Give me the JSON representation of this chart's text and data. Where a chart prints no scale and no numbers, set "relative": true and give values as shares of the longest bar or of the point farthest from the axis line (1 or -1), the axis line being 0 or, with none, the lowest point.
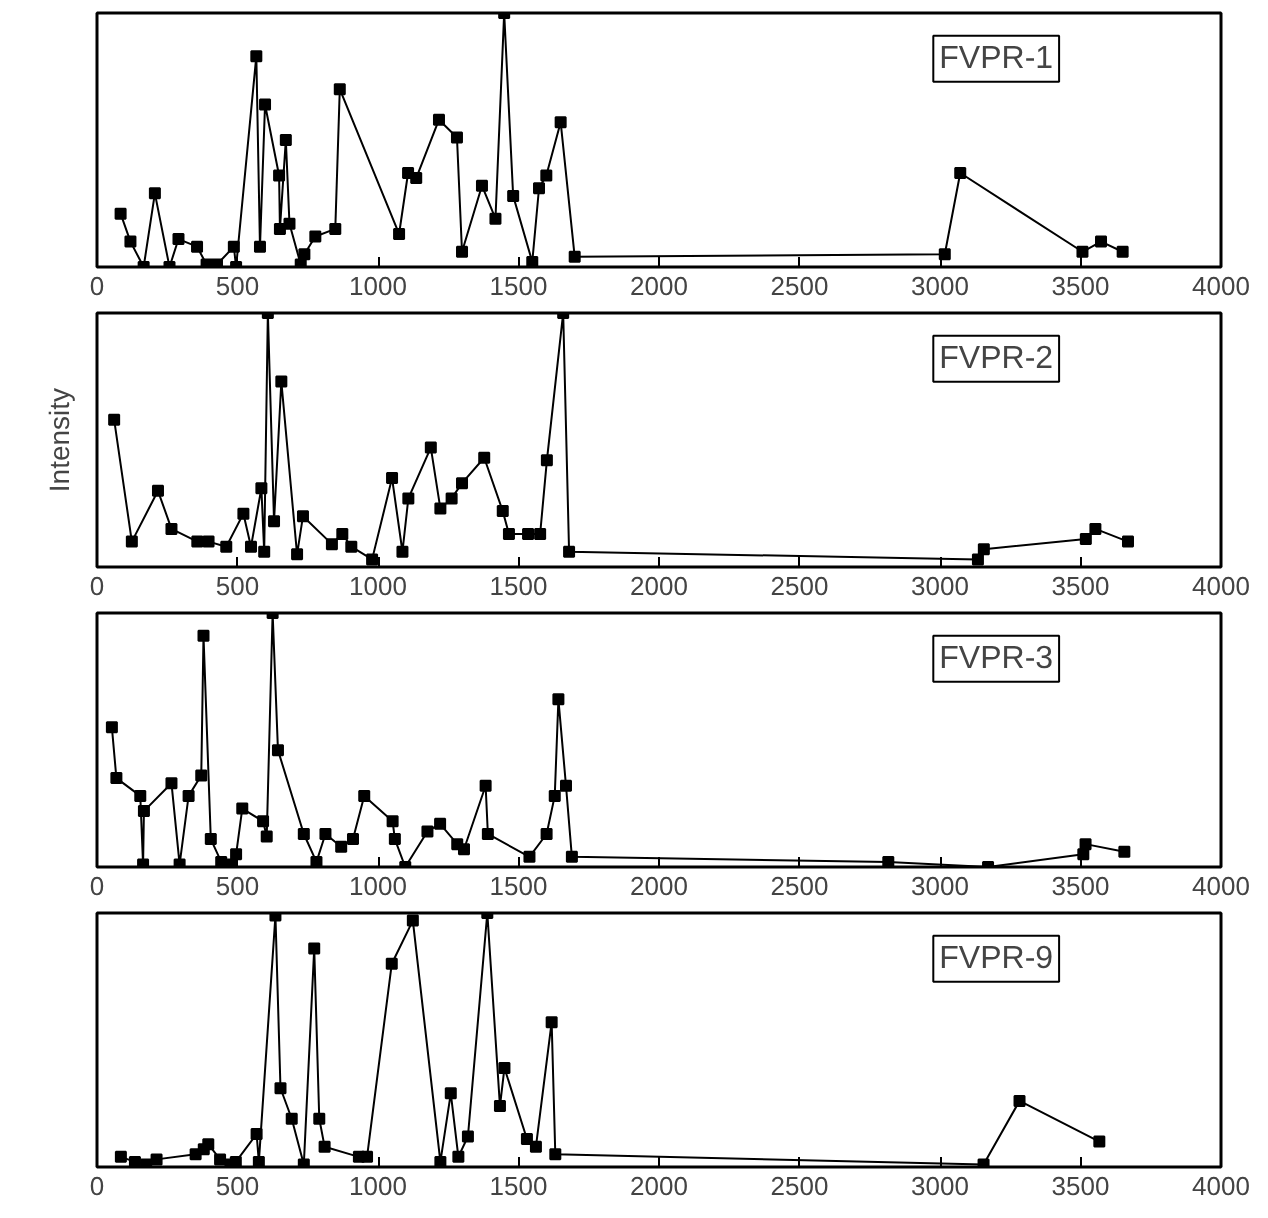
{
  "chart_data": [
    {
      "type": "line",
      "title": "FVPR-1",
      "relative": true,
      "marker": "square",
      "line_style": "solid",
      "grid": false,
      "tick_labels": "x",
      "xlim": [
        0,
        4000
      ],
      "xticks": [
        0,
        500,
        1000,
        1500,
        2000,
        2500,
        3000,
        3500,
        4000
      ],
      "x": [
        84,
        119,
        166,
        206,
        258,
        290,
        356,
        390,
        427,
        487,
        495,
        567,
        580,
        598,
        648,
        651,
        672,
        685,
        725,
        738,
        777,
        848,
        864,
        1075,
        1107,
        1136,
        1217,
        1281,
        1299,
        1370,
        1418,
        1449,
        1481,
        1549,
        1573,
        1599,
        1650,
        1700,
        3017,
        3072,
        3507,
        3573,
        3650
      ],
      "series": [
        {
          "color": "#000000",
          "values": [
            0.21,
            0.1,
            0,
            0.29,
            0,
            0.11,
            0.08,
            0.01,
            0.01,
            0.08,
            0,
            0.83,
            0.08,
            0.64,
            0.36,
            0.15,
            0.5,
            0.17,
            0.01,
            0.05,
            0.12,
            0.15,
            0.7,
            0.13,
            0.37,
            0.35,
            0.58,
            0.51,
            0.06,
            0.32,
            0.19,
            1.0,
            0.28,
            0.02,
            0.31,
            0.36,
            0.57,
            0.04,
            0.05,
            0.37,
            0.06,
            0.1,
            0.06
          ]
        }
      ]
    },
    {
      "type": "line",
      "title": "FVPR-2",
      "ylabel": "Intensity",
      "relative": true,
      "marker": "square",
      "line_style": "solid",
      "grid": false,
      "tick_labels": "x",
      "xlim": [
        0,
        4000
      ],
      "xticks": [
        0,
        500,
        1000,
        1500,
        2000,
        2500,
        3000,
        3500,
        4000
      ],
      "x": [
        61,
        124,
        217,
        265,
        357,
        397,
        460,
        521,
        548,
        585,
        595,
        608,
        630,
        656,
        712,
        733,
        836,
        873,
        905,
        979,
        1050,
        1087,
        1108,
        1188,
        1222,
        1262,
        1299,
        1378,
        1444,
        1466,
        1534,
        1577,
        1601,
        1659,
        1680,
        3135,
        3156,
        3519,
        3553,
        3669
      ],
      "series": [
        {
          "color": "#000000",
          "values": [
            0.58,
            0.1,
            0.3,
            0.15,
            0.1,
            0.1,
            0.08,
            0.21,
            0.08,
            0.31,
            0.06,
            1.0,
            0.18,
            0.73,
            0.05,
            0.2,
            0.09,
            0.13,
            0.08,
            0.03,
            0.35,
            0.06,
            0.27,
            0.47,
            0.23,
            0.27,
            0.33,
            0.43,
            0.22,
            0.13,
            0.13,
            0.13,
            0.42,
            1.0,
            0.06,
            0.03,
            0.07,
            0.11,
            0.15,
            0.1
          ]
        }
      ]
    },
    {
      "type": "line",
      "title": "FVPR-3",
      "relative": true,
      "marker": "square",
      "line_style": "solid",
      "grid": false,
      "tick_labels": "x",
      "xlim": [
        0,
        4000
      ],
      "xticks": [
        0,
        500,
        1000,
        1500,
        2000,
        2500,
        3000,
        3500,
        4000
      ],
      "x": [
        53,
        69,
        154,
        164,
        167,
        265,
        294,
        326,
        371,
        379,
        405,
        442,
        479,
        495,
        517,
        591,
        604,
        625,
        644,
        736,
        781,
        813,
        869,
        911,
        951,
        1052,
        1060,
        1097,
        1176,
        1221,
        1282,
        1306,
        1383,
        1391,
        1539,
        1600,
        1629,
        1642,
        1669,
        1690,
        2816,
        3171,
        3510,
        3518,
        3656
      ],
      "series": [
        {
          "color": "#000000",
          "values": [
            0.55,
            0.35,
            0.28,
            0.01,
            0.22,
            0.33,
            0.01,
            0.28,
            0.36,
            0.91,
            0.11,
            0.02,
            0.01,
            0.05,
            0.23,
            0.18,
            0.12,
            1.0,
            0.46,
            0.13,
            0.02,
            0.13,
            0.08,
            0.11,
            0.28,
            0.18,
            0.11,
            0,
            0.14,
            0.17,
            0.09,
            0.07,
            0.32,
            0.13,
            0.04,
            0.13,
            0.28,
            0.66,
            0.32,
            0.04,
            0.02,
            0,
            0.05,
            0.09,
            0.06
          ]
        }
      ]
    },
    {
      "type": "line",
      "title": "FVPR-9",
      "relative": true,
      "marker": "square",
      "line_style": "solid",
      "grid": false,
      "tick_labels": "x",
      "xlim": [
        0,
        4000
      ],
      "xticks": [
        0,
        500,
        1000,
        1500,
        2000,
        2500,
        3000,
        3500,
        4000
      ],
      "x": [
        85,
        135,
        175,
        212,
        351,
        380,
        396,
        438,
        475,
        494,
        568,
        576,
        635,
        653,
        693,
        736,
        773,
        791,
        810,
        932,
        961,
        1049,
        1124,
        1222,
        1259,
        1286,
        1320,
        1389,
        1434,
        1450,
        1530,
        1562,
        1618,
        1631,
        3155,
        3283,
        3567
      ],
      "series": [
        {
          "color": "#000000",
          "values": [
            0.04,
            0.02,
            0.01,
            0.03,
            0.05,
            0.07,
            0.09,
            0.03,
            0.01,
            0.02,
            0.13,
            0.02,
            0.99,
            0.31,
            0.19,
            0.01,
            0.86,
            0.19,
            0.08,
            0.04,
            0.04,
            0.8,
            0.97,
            0.02,
            0.29,
            0.04,
            0.12,
            1.0,
            0.24,
            0.39,
            0.11,
            0.08,
            0.57,
            0.05,
            0.01,
            0.26,
            0.1
          ]
        }
      ]
    }
  ]
}
